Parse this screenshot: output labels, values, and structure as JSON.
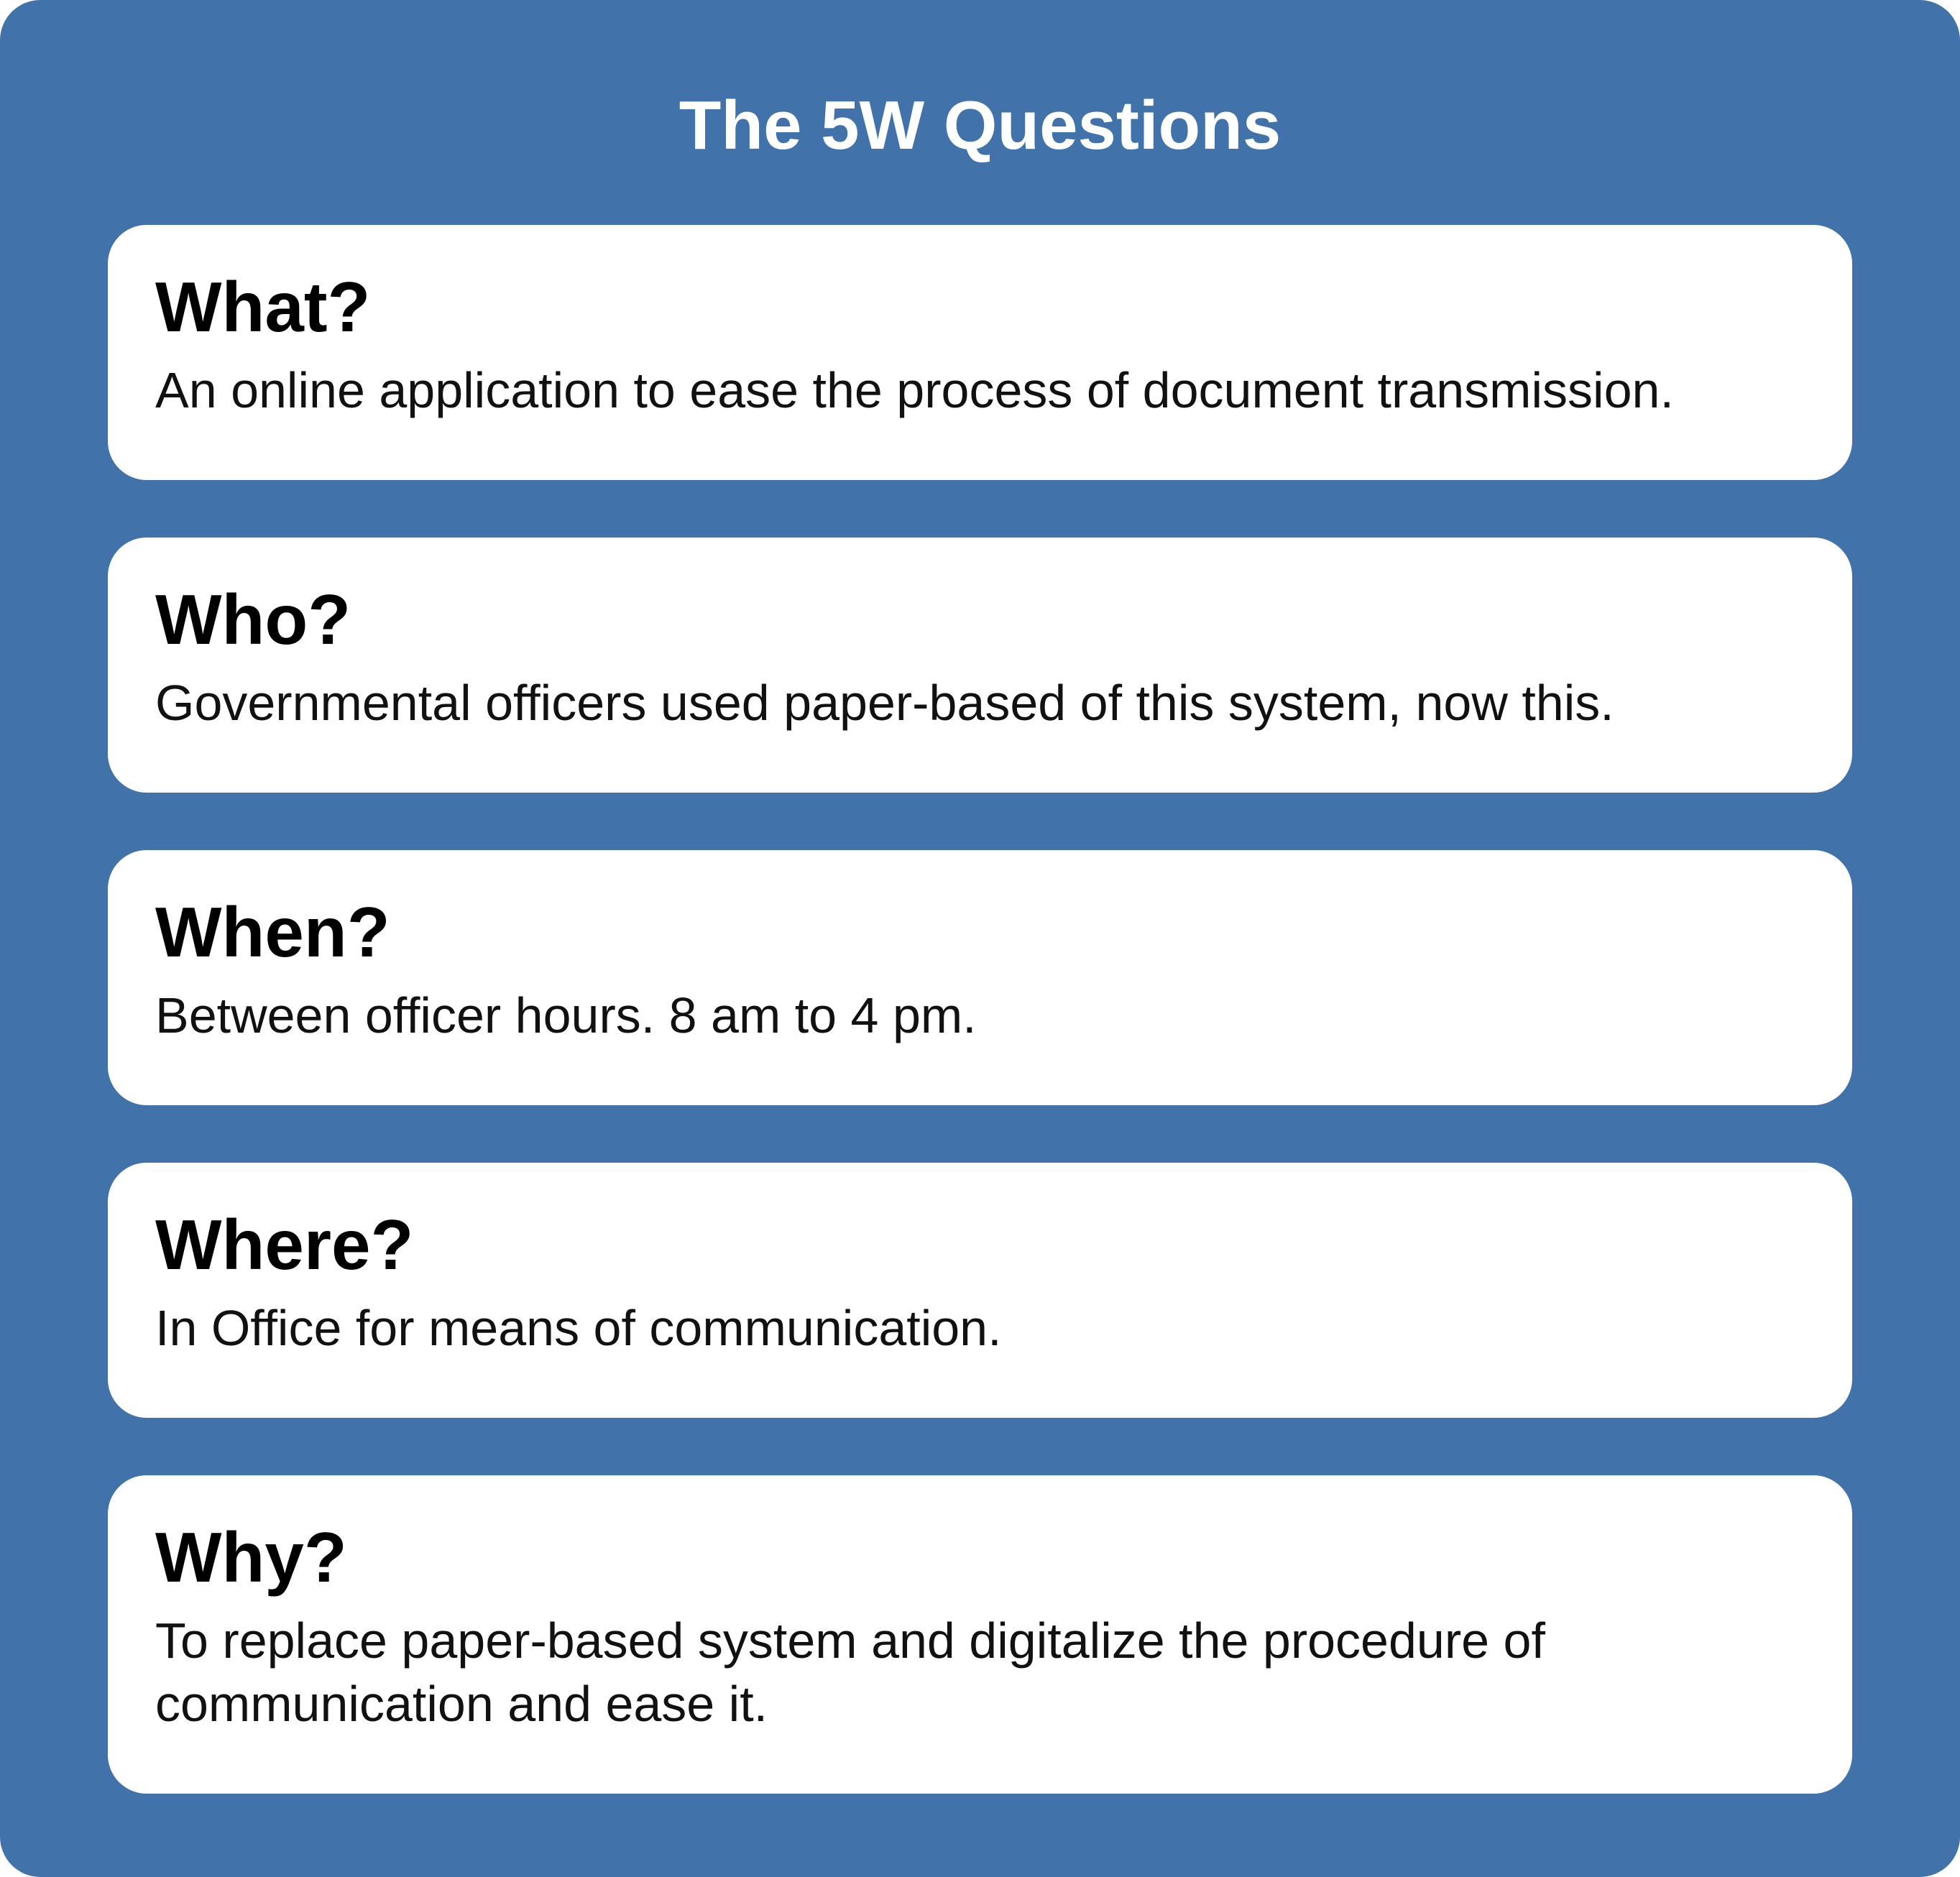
{
  "title": "The 5W Questions",
  "cards": [
    {
      "question": "What?",
      "answer": "An online application to ease the process of document transmission."
    },
    {
      "question": "Who?",
      "answer": "Governmental officers used paper-based of this system, now this."
    },
    {
      "question": "When?",
      "answer": "Between officer hours. 8 am to 4 pm."
    },
    {
      "question": "Where?",
      "answer": "In Office for means of communication."
    },
    {
      "question": "Why?",
      "answer": "To replace paper-based system and digitalize the procedure of communication and ease it."
    }
  ],
  "colors": {
    "panel_background": "#4172aa",
    "card_background": "#ffffff",
    "title_text": "#ffffff",
    "card_text": "#000000"
  }
}
